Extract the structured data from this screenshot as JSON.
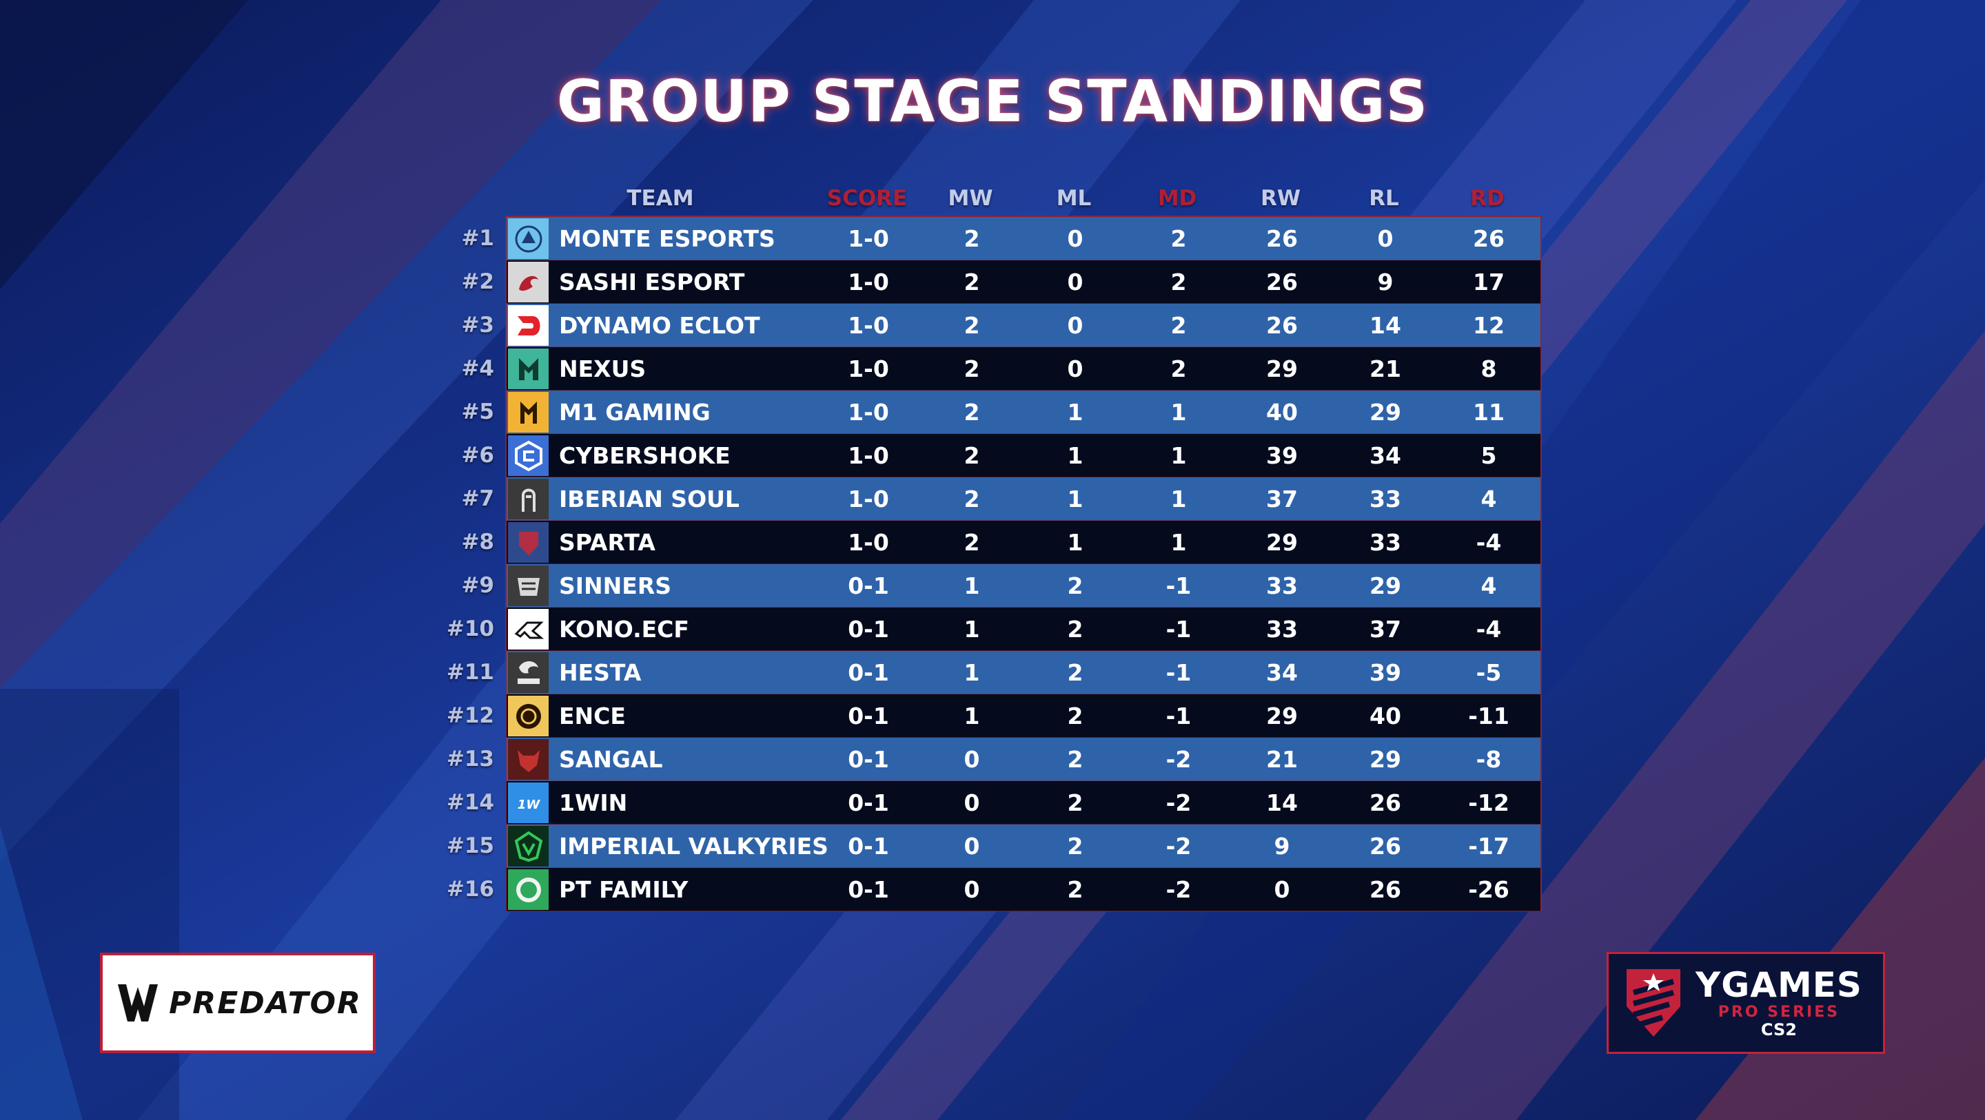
{
  "title": "GROUP STAGE STANDINGS",
  "columns": {
    "team": "TEAM",
    "score": "SCORE",
    "mw": "MW",
    "ml": "ML",
    "md": "MD",
    "rw": "RW",
    "rl": "RL",
    "rd": "RD"
  },
  "colors": {
    "accent_red": "#b01f36",
    "row_light": "#2f63a9",
    "row_dark": "#050b1d",
    "background": "#0d1d63"
  },
  "standings": [
    {
      "rank": "#1",
      "team": "MONTE ESPORTS",
      "logo": "monte-logo-icon",
      "score": "1-0",
      "mw": "2",
      "ml": "0",
      "md": "2",
      "rw": "26",
      "rl": "0",
      "rd": "26"
    },
    {
      "rank": "#2",
      "team": "SASHI ESPORT",
      "logo": "sashi-logo-icon",
      "score": "1-0",
      "mw": "2",
      "ml": "0",
      "md": "2",
      "rw": "26",
      "rl": "9",
      "rd": "17"
    },
    {
      "rank": "#3",
      "team": "DYNAMO ECLOT",
      "logo": "dynamo-logo-icon",
      "score": "1-0",
      "mw": "2",
      "ml": "0",
      "md": "2",
      "rw": "26",
      "rl": "14",
      "rd": "12"
    },
    {
      "rank": "#4",
      "team": "NEXUS",
      "logo": "nexus-logo-icon",
      "score": "1-0",
      "mw": "2",
      "ml": "0",
      "md": "2",
      "rw": "29",
      "rl": "21",
      "rd": "8"
    },
    {
      "rank": "#5",
      "team": "M1 GAMING",
      "logo": "m1-logo-icon",
      "score": "1-0",
      "mw": "2",
      "ml": "1",
      "md": "1",
      "rw": "40",
      "rl": "29",
      "rd": "11"
    },
    {
      "rank": "#6",
      "team": "CYBERSHOKE",
      "logo": "cybershoke-logo-icon",
      "score": "1-0",
      "mw": "2",
      "ml": "1",
      "md": "1",
      "rw": "39",
      "rl": "34",
      "rd": "5"
    },
    {
      "rank": "#7",
      "team": "IBERIAN SOUL",
      "logo": "iberian-soul-logo-icon",
      "score": "1-0",
      "mw": "2",
      "ml": "1",
      "md": "1",
      "rw": "37",
      "rl": "33",
      "rd": "4"
    },
    {
      "rank": "#8",
      "team": "SPARTA",
      "logo": "sparta-logo-icon",
      "score": "1-0",
      "mw": "2",
      "ml": "1",
      "md": "1",
      "rw": "29",
      "rl": "33",
      "rd": "-4"
    },
    {
      "rank": "#9",
      "team": "SINNERS",
      "logo": "sinners-logo-icon",
      "score": "0-1",
      "mw": "1",
      "ml": "2",
      "md": "-1",
      "rw": "33",
      "rl": "29",
      "rd": "4"
    },
    {
      "rank": "#10",
      "team": "KONO.ECF",
      "logo": "kono-logo-icon",
      "score": "0-1",
      "mw": "1",
      "ml": "2",
      "md": "-1",
      "rw": "33",
      "rl": "37",
      "rd": "-4"
    },
    {
      "rank": "#11",
      "team": "HESTA",
      "logo": "hesta-logo-icon",
      "score": "0-1",
      "mw": "1",
      "ml": "2",
      "md": "-1",
      "rw": "34",
      "rl": "39",
      "rd": "-5"
    },
    {
      "rank": "#12",
      "team": "ENCE",
      "logo": "ence-logo-icon",
      "score": "0-1",
      "mw": "1",
      "ml": "2",
      "md": "-1",
      "rw": "29",
      "rl": "40",
      "rd": "-11"
    },
    {
      "rank": "#13",
      "team": "SANGAL",
      "logo": "sangal-logo-icon",
      "score": "0-1",
      "mw": "0",
      "ml": "2",
      "md": "-2",
      "rw": "21",
      "rl": "29",
      "rd": "-8"
    },
    {
      "rank": "#14",
      "team": "1WIN",
      "logo": "1win-logo-icon",
      "score": "0-1",
      "mw": "0",
      "ml": "2",
      "md": "-2",
      "rw": "14",
      "rl": "26",
      "rd": "-12"
    },
    {
      "rank": "#15",
      "team": "IMPERIAL VALKYRIES",
      "logo": "imperial-logo-icon",
      "score": "0-1",
      "mw": "0",
      "ml": "2",
      "md": "-2",
      "rw": "9",
      "rl": "26",
      "rd": "-17"
    },
    {
      "rank": "#16",
      "team": "PT FAMILY",
      "logo": "pt-family-logo-icon",
      "score": "0-1",
      "mw": "0",
      "ml": "2",
      "md": "-2",
      "rw": "0",
      "rl": "26",
      "rd": "-26"
    }
  ],
  "sponsor": {
    "name": "PREDATOR",
    "logo": "predator-logo-icon"
  },
  "brand": {
    "name": "YGAMES",
    "subtitle": "PRO SERIES",
    "game": "CS2",
    "logo": "ygames-shield-icon"
  }
}
